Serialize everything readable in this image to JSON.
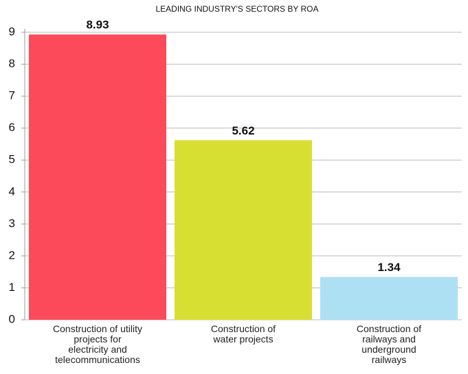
{
  "chart_data": {
    "type": "bar",
    "title": "LEADING INDUSTRY'S SECTORS BY ROA",
    "categories": [
      "Construction of utility projects for electricity and telecommunications",
      "Construction of water projects",
      "Construction of railways and underground railways"
    ],
    "values": [
      8.93,
      5.62,
      1.34
    ],
    "colors": [
      "#fc4a5a",
      "#d7df32",
      "#aee0f3"
    ],
    "ylim": [
      0,
      9
    ],
    "yticks": [
      0,
      1,
      2,
      3,
      4,
      5,
      6,
      7,
      8,
      9
    ],
    "grid": true
  }
}
